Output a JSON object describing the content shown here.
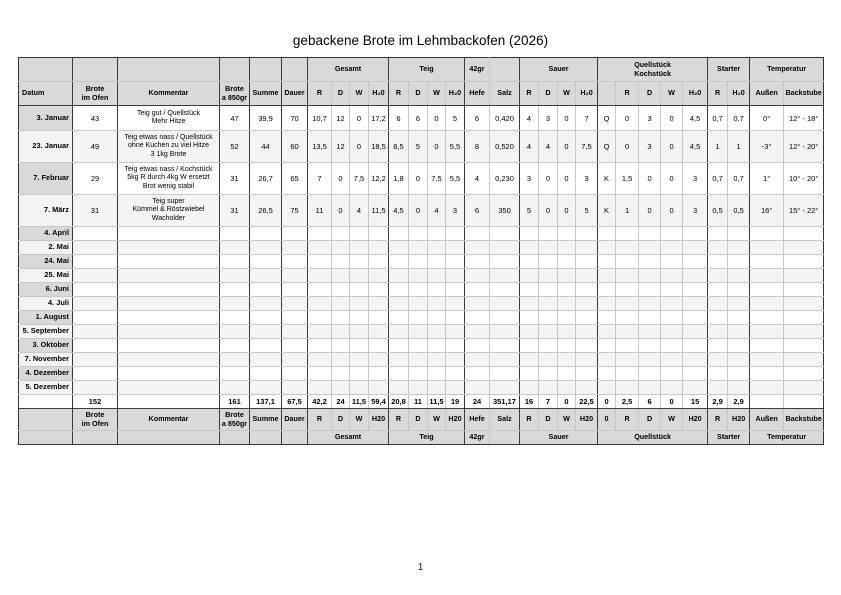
{
  "title": "gebackene Brote im Lehmbackofen (2026)",
  "page_number": "1",
  "colors": {
    "header_fill": "#d9d9d9",
    "row_alt_fill": "#f4f4f4",
    "grid_light": "#c9c9c9",
    "grid_dark": "#3b3b3b",
    "page_background": "#ffffff"
  },
  "table": {
    "top_groups": [
      {
        "label": "",
        "span": 1
      },
      {
        "label": "",
        "span": 1
      },
      {
        "label": "",
        "span": 1
      },
      {
        "label": "",
        "span": 1
      },
      {
        "label": "",
        "span": 1
      },
      {
        "label": "",
        "span": 1
      },
      {
        "label": "Gesamt",
        "span": 4
      },
      {
        "label": "Teig",
        "span": 4
      },
      {
        "label": "42gr",
        "span": 1
      },
      {
        "label": "",
        "span": 1
      },
      {
        "label": "Sauer",
        "span": 4
      },
      {
        "label": "Quellstück\nKochstück",
        "span": 5
      },
      {
        "label": "Starter",
        "span": 2
      },
      {
        "label": "Temperatur",
        "span": 2
      }
    ],
    "column_headers": [
      "Datum",
      "Brote\nim Ofen",
      "Kommentar",
      "Brote\na 850gr",
      "Summe",
      "Dauer",
      "R",
      "D",
      "W",
      "H₂0",
      "R",
      "D",
      "W",
      "H₂0",
      "Hefe",
      "Salz",
      "R",
      "D",
      "W",
      "H₂0",
      "",
      "R",
      "D",
      "W",
      "H₂0",
      "R",
      "H₂0",
      "Außen",
      "Backstube"
    ],
    "body_rows": [
      {
        "date": "3. Januar",
        "cells": [
          "43",
          "Teig gut / Quellstück\nMehr Hitze",
          "47",
          "39,9",
          "70",
          "10,7",
          "12",
          "0",
          "17,2",
          "6",
          "6",
          "0",
          "5",
          "6",
          "0,420",
          "4",
          "3",
          "0",
          "7",
          "Q",
          "0",
          "3",
          "0",
          "4,5",
          "0,7",
          "0,7",
          "0°",
          "12° - 18°"
        ]
      },
      {
        "date": "23. Januar",
        "cells": [
          "49",
          "Teig etwas nass / Quellstück\nohne Kuchen zu viel Hitze\n3 1kg Brote",
          "52",
          "44",
          "60",
          "13,5",
          "12",
          "0",
          "18,5",
          "8,5",
          "5",
          "0",
          "5,5",
          "8",
          "0,520",
          "4",
          "4",
          "0",
          "7,5",
          "Q",
          "0",
          "3",
          "0",
          "4,5",
          "1",
          "1",
          "-3°",
          "12° - 20°"
        ]
      },
      {
        "date": "7. Februar",
        "cells": [
          "29",
          "Teig etwas nass / Kochstück\n5kg R durch 4kg W ersetzt\nBrot wenig stabil",
          "31",
          "26,7",
          "65",
          "7",
          "0",
          "7,5",
          "12,2",
          "1,8",
          "0",
          "7,5",
          "5,5",
          "4",
          "0,230",
          "3",
          "0",
          "0",
          "3",
          "K",
          "1,5",
          "0",
          "0",
          "3",
          "0,7",
          "0,7",
          "1°",
          "10° - 20°"
        ]
      },
      {
        "date": "7. März",
        "cells": [
          "31",
          "Teig super\nKümmel & Röstzwiebel\nWacholder",
          "31",
          "26,5",
          "75",
          "11",
          "0",
          "4",
          "11,5",
          "4,5",
          "0",
          "4",
          "3",
          "6",
          "350",
          "5",
          "0",
          "0",
          "5",
          "K",
          "1",
          "0",
          "0",
          "3",
          "0,5",
          "0,5",
          "16°",
          "15° - 22°"
        ]
      },
      {
        "date": "4. April",
        "cells": []
      },
      {
        "date": "2. Mai",
        "cells": []
      },
      {
        "date": "24. Mai",
        "cells": []
      },
      {
        "date": "25. Mai",
        "cells": []
      },
      {
        "date": "6. Juni",
        "cells": []
      },
      {
        "date": "4. Juli",
        "cells": []
      },
      {
        "date": "1. August",
        "cells": []
      },
      {
        "date": "5. September",
        "cells": []
      },
      {
        "date": "3. Oktober",
        "cells": []
      },
      {
        "date": "7. November",
        "cells": []
      },
      {
        "date": "4. Dezember",
        "cells": []
      },
      {
        "date": "5. Dezember",
        "cells": []
      }
    ],
    "totals_row": [
      "",
      "152",
      "",
      "161",
      "137,1",
      "67,5",
      "42,2",
      "24",
      "11,5",
      "59,4",
      "20,8",
      "11",
      "11,5",
      "19",
      "24",
      "351,17",
      "16",
      "7",
      "0",
      "22,5",
      "0",
      "2,5",
      "6",
      "0",
      "15",
      "2,9",
      "2,9",
      "",
      ""
    ],
    "footer_headers": [
      "",
      "Brote\nim Ofen",
      "Kommentar",
      "Brote\na 850gr",
      "Summe",
      "Dauer",
      "R",
      "D",
      "W",
      "H20",
      "R",
      "D",
      "W",
      "H20",
      "Hefe",
      "Salz",
      "R",
      "D",
      "W",
      "H20",
      "0",
      "R",
      "D",
      "W",
      "H20",
      "R",
      "H20",
      "Außen",
      "Backstube"
    ],
    "footer_groups": [
      {
        "label": "",
        "span": 1
      },
      {
        "label": "",
        "span": 1
      },
      {
        "label": "",
        "span": 1
      },
      {
        "label": "",
        "span": 1
      },
      {
        "label": "",
        "span": 1
      },
      {
        "label": "",
        "span": 1
      },
      {
        "label": "Gesamt",
        "span": 4
      },
      {
        "label": "Teig",
        "span": 4
      },
      {
        "label": "42gr",
        "span": 1
      },
      {
        "label": "",
        "span": 1
      },
      {
        "label": "Sauer",
        "span": 4
      },
      {
        "label": "Quellstück",
        "span": 5
      },
      {
        "label": "Starter",
        "span": 2
      },
      {
        "label": "Temperatur",
        "span": 2
      }
    ]
  }
}
